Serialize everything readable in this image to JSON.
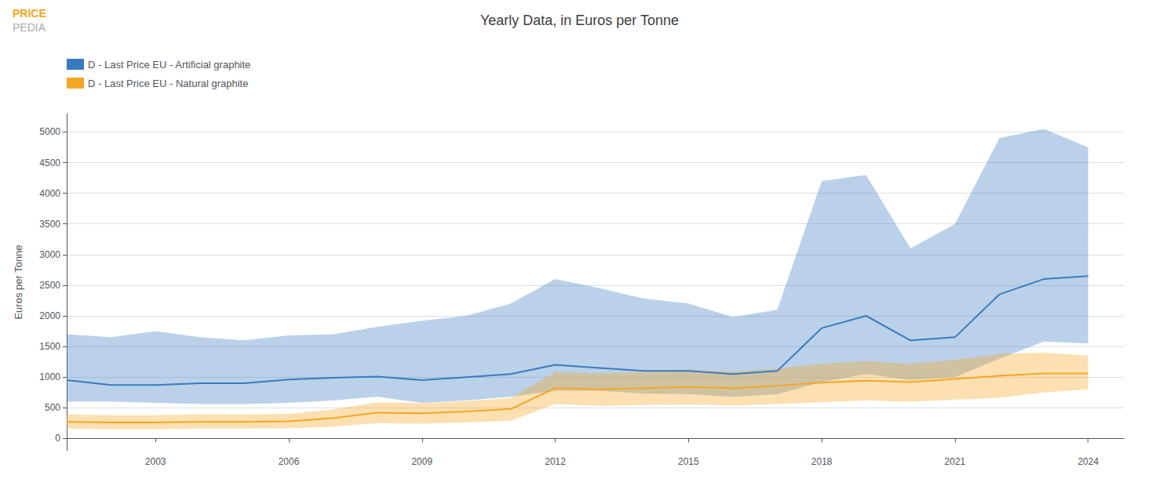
{
  "chart_data": {
    "type": "line",
    "title": "Yearly Data, in Euros per Tonne",
    "ylabel": "Euros per Tonne",
    "annotations": [
      "PRICE",
      "PEDIA"
    ],
    "x": [
      2001,
      2002,
      2003,
      2004,
      2005,
      2006,
      2007,
      2008,
      2009,
      2010,
      2011,
      2012,
      2013,
      2014,
      2015,
      2016,
      2017,
      2018,
      2019,
      2020,
      2021,
      2022,
      2023,
      2024
    ],
    "xlim": [
      2001,
      2024.8
    ],
    "xticks": [
      2003,
      2006,
      2009,
      2012,
      2015,
      2018,
      2021,
      2024
    ],
    "ylim": [
      -200,
      5300
    ],
    "yticks": [
      0,
      500,
      1000,
      1500,
      2000,
      2500,
      3000,
      3500,
      4000,
      4500,
      5000
    ],
    "grid": true,
    "legend": "top-left",
    "series": [
      {
        "name": "D - Last Price EU - Artificial graphite",
        "color": "#3a7abf",
        "values": [
          950,
          870,
          870,
          900,
          900,
          960,
          990,
          1010,
          950,
          1000,
          1050,
          1200,
          1150,
          1100,
          1100,
          1050,
          1100,
          1800,
          2000,
          1600,
          1650,
          2350,
          2600,
          2650
        ],
        "lower": [
          600,
          600,
          580,
          560,
          560,
          580,
          620,
          680,
          580,
          620,
          680,
          780,
          780,
          730,
          720,
          680,
          720,
          920,
          1050,
          950,
          1000,
          1300,
          1580,
          1550
        ],
        "upper": [
          1700,
          1650,
          1750,
          1650,
          1600,
          1680,
          1700,
          1820,
          1920,
          2000,
          2200,
          2600,
          2450,
          2280,
          2200,
          1980,
          2100,
          4200,
          4300,
          3100,
          3500,
          4900,
          5050,
          4750
        ]
      },
      {
        "name": "D - Last Price EU - Natural graphite",
        "color": "#f5a623",
        "values": [
          270,
          260,
          260,
          270,
          270,
          280,
          330,
          420,
          410,
          440,
          480,
          820,
          800,
          820,
          840,
          820,
          860,
          910,
          940,
          920,
          970,
          1020,
          1060,
          1060
        ],
        "lower": [
          160,
          150,
          150,
          160,
          160,
          165,
          190,
          250,
          240,
          260,
          285,
          560,
          530,
          545,
          555,
          535,
          560,
          590,
          620,
          600,
          630,
          660,
          750,
          800
        ],
        "upper": [
          390,
          380,
          380,
          395,
          390,
          400,
          475,
          590,
          575,
          610,
          660,
          1080,
          1060,
          1090,
          1120,
          1090,
          1140,
          1220,
          1260,
          1220,
          1280,
          1380,
          1400,
          1350
        ]
      }
    ]
  }
}
